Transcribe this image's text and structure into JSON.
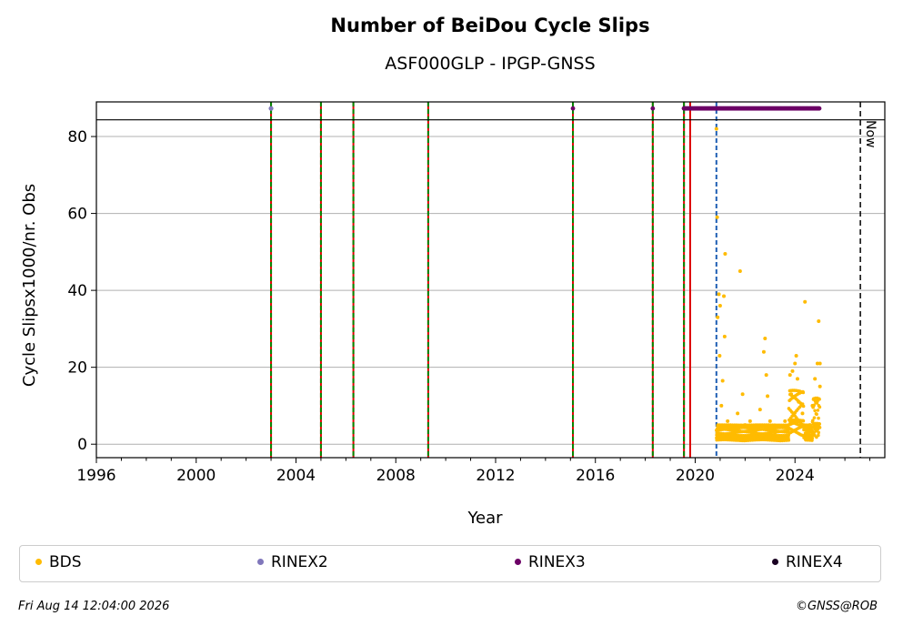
{
  "chart_data": {
    "type": "scatter",
    "title": "Number of BeiDou Cycle Slips",
    "subtitle": "ASF000GLP - IPGP-GNSS",
    "xlabel": "Year",
    "ylabel": "Cycle Slipsx1000/nr. Obs",
    "xlim": [
      1996,
      2027.6
    ],
    "ylim": [
      -3.5,
      89
    ],
    "x_ticks": [
      "1996",
      "2000",
      "2004",
      "2008",
      "2012",
      "2016",
      "2020",
      "2024"
    ],
    "y_ticks": [
      "0",
      "20",
      "40",
      "60",
      "80"
    ],
    "grid": "horizontal",
    "now_label": "Now",
    "now_year": 2026.62,
    "rinex_band_y": 86,
    "green_red_dashed_lines": [
      2003.0,
      2005.0,
      2006.3,
      2009.3,
      2015.1,
      2018.3,
      2019.55
    ],
    "red_line": 2019.8,
    "blue_dashed_line": 2020.85,
    "rinex_markers": {
      "RINEX2": [
        2003.0
      ],
      "RINEX3": [
        2015.1,
        2018.3,
        2019.55
      ],
      "RINEX3_continuous": [
        2019.55,
        2025.0
      ]
    },
    "series": [
      {
        "name": "BDS",
        "color": "#ffbb00",
        "points": [
          [
            2020.85,
            82
          ],
          [
            2020.88,
            59
          ],
          [
            2020.9,
            33
          ],
          [
            2020.95,
            39
          ],
          [
            2020.98,
            23
          ],
          [
            2021.0,
            36
          ],
          [
            2021.05,
            10
          ],
          [
            2021.1,
            16.5
          ],
          [
            2021.15,
            38.5
          ],
          [
            2021.18,
            28
          ],
          [
            2021.2,
            49.5
          ],
          [
            2021.3,
            6
          ],
          [
            2021.5,
            4
          ],
          [
            2021.7,
            8
          ],
          [
            2021.8,
            45
          ],
          [
            2021.9,
            13
          ],
          [
            2022.0,
            5
          ],
          [
            2022.2,
            6
          ],
          [
            2022.4,
            3
          ],
          [
            2022.6,
            9
          ],
          [
            2022.75,
            24
          ],
          [
            2022.8,
            27.5
          ],
          [
            2022.85,
            18
          ],
          [
            2022.9,
            12.5
          ],
          [
            2023.0,
            6
          ],
          [
            2023.2,
            3
          ],
          [
            2023.4,
            2
          ],
          [
            2023.6,
            6
          ],
          [
            2023.8,
            18
          ],
          [
            2023.85,
            13
          ],
          [
            2023.9,
            19
          ],
          [
            2024.0,
            21
          ],
          [
            2024.05,
            23
          ],
          [
            2024.1,
            17
          ],
          [
            2024.15,
            11
          ],
          [
            2024.3,
            8
          ],
          [
            2024.4,
            37
          ],
          [
            2024.6,
            5
          ],
          [
            2024.7,
            10
          ],
          [
            2024.8,
            17
          ],
          [
            2024.9,
            21
          ],
          [
            2024.95,
            32
          ],
          [
            2025.0,
            21
          ],
          [
            2025.0,
            15
          ]
        ]
      }
    ]
  },
  "legend": {
    "items": [
      {
        "label": "BDS",
        "color": "#ffbb00"
      },
      {
        "label": "RINEX2",
        "color": "#8077bb"
      },
      {
        "label": "RINEX3",
        "color": "#6c0066"
      },
      {
        "label": "RINEX4",
        "color": "#1a0022"
      }
    ]
  },
  "footer": {
    "timestamp": "Fri Aug 14 12:04:00 2026",
    "credit": "©GNSS@ROB"
  }
}
